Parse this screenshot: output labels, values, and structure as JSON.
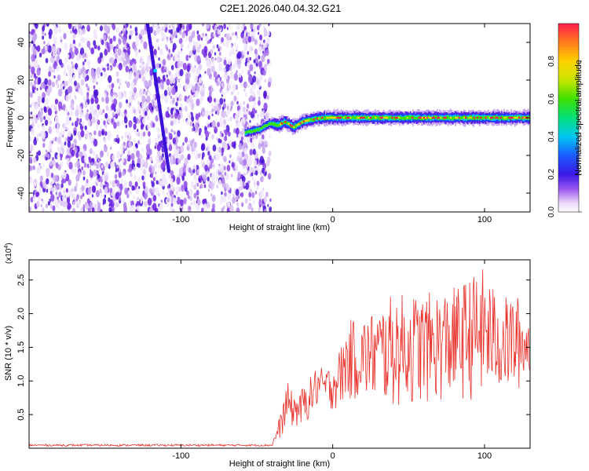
{
  "title": "C2E1.2026.040.04.32.G21",
  "chart_data": [
    {
      "type": "heatmap",
      "xlabel": "Height of straight line (km)",
      "ylabel": "Frequency (Hz)",
      "xlim": [
        -200,
        130
      ],
      "ylim": [
        -50,
        50
      ],
      "x_ticks": [
        -100,
        0,
        100
      ],
      "y_ticks": [
        -40,
        -20,
        0,
        20,
        40
      ],
      "colorbar": {
        "label": "Normalized spectral amplitude",
        "range": [
          0,
          1
        ],
        "ticks": [
          0.0,
          0.2,
          0.4,
          0.6,
          0.8
        ]
      },
      "features": {
        "noise_region_x": [
          -200,
          -45
        ],
        "slant_line": {
          "x_start": -122,
          "y_start": 50,
          "x_end": -108,
          "y_end": -28
        },
        "signal_band": [
          [
            -58,
            -8
          ],
          [
            -48,
            -6
          ],
          [
            -42,
            -3
          ],
          [
            -36,
            -4
          ],
          [
            -32,
            -2
          ],
          [
            -26,
            -5
          ],
          [
            -20,
            -2
          ],
          [
            -14,
            -1
          ],
          [
            -8,
            0
          ],
          [
            0,
            0
          ],
          [
            10,
            0
          ],
          [
            20,
            0
          ],
          [
            40,
            0
          ],
          [
            60,
            0
          ],
          [
            80,
            0
          ],
          [
            100,
            0
          ],
          [
            130,
            0
          ]
        ]
      }
    },
    {
      "type": "line",
      "xlabel": "Height of straight line (km)",
      "ylabel": "SNR (10 * v/v)",
      "y_scale_label": "(x10",
      "y_scale_exp": "4",
      "xlim": [
        -200,
        130
      ],
      "ylim": [
        0,
        2.8
      ],
      "x_ticks": [
        -100,
        0,
        100
      ],
      "y_ticks": [
        0.5,
        1.0,
        1.5,
        2.0,
        2.5
      ],
      "y_tick_labels": [
        "0.5",
        "1.0",
        "1.5",
        "2.0",
        "2.5"
      ],
      "color": "#e8322c",
      "envelope_x": [
        -200,
        -40,
        -34,
        -30,
        -26,
        -20,
        -15,
        -10,
        -5,
        0,
        5,
        10,
        20,
        30,
        40,
        60,
        80,
        100,
        110,
        120,
        130
      ],
      "envelope_min": [
        0.03,
        0.03,
        0.15,
        0.35,
        0.3,
        0.3,
        0.45,
        0.6,
        0.65,
        0.55,
        0.6,
        0.7,
        0.7,
        0.65,
        0.6,
        0.65,
        0.7,
        0.7,
        0.85,
        0.75,
        1.1
      ],
      "envelope_max": [
        0.06,
        0.06,
        0.55,
        1.0,
        0.8,
        0.9,
        1.05,
        1.25,
        1.15,
        1.3,
        1.5,
        1.9,
        1.95,
        2.1,
        2.3,
        2.3,
        2.4,
        2.7,
        2.2,
        2.35,
        1.9
      ]
    }
  ]
}
